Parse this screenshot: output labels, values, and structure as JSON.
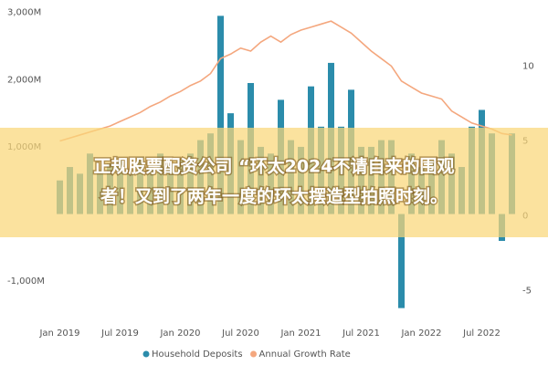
{
  "chart_data": {
    "type": "bar-line",
    "categories": [
      "Jan 2019",
      null,
      null,
      null,
      null,
      null,
      "Jul 2019",
      null,
      null,
      null,
      null,
      null,
      "Jan 2020",
      null,
      null,
      null,
      null,
      null,
      "Jul 2020",
      null,
      null,
      null,
      null,
      null,
      "Jan 2021",
      null,
      null,
      null,
      null,
      null,
      "Jul 2021",
      null,
      null,
      null,
      null,
      null,
      "Jan 2022",
      null,
      null,
      null,
      null,
      null,
      "Jul 2022",
      null,
      null,
      null
    ],
    "series": [
      {
        "name": "Household Deposits",
        "color": "#2b8cab",
        "type": "bar",
        "values": [
          500,
          700,
          600,
          900,
          650,
          750,
          800,
          600,
          850,
          700,
          900,
          750,
          800,
          900,
          1100,
          1200,
          2950,
          1500,
          1100,
          1950,
          1000,
          900,
          1700,
          1100,
          1000,
          1900,
          1300,
          2250,
          1300,
          1850,
          1000,
          1000,
          1100,
          1100,
          -1400,
          900,
          700,
          800,
          1100,
          900,
          700,
          1300,
          1550,
          1200,
          -400,
          1200
        ]
      },
      {
        "name": "Annual Growth Rate",
        "color": "#f4a77e",
        "type": "line",
        "axis": "y2",
        "values": [
          5,
          5.2,
          5.4,
          5.6,
          5.8,
          6.0,
          6.3,
          6.6,
          6.9,
          7.3,
          7.6,
          8.0,
          8.3,
          8.7,
          9.0,
          9.5,
          10.5,
          10.8,
          11.2,
          11.0,
          11.6,
          12.0,
          11.6,
          12.1,
          12.4,
          12.6,
          12.8,
          13.0,
          12.6,
          12.2,
          11.6,
          11.0,
          10.5,
          10.0,
          9.0,
          8.6,
          8.2,
          8.0,
          7.8,
          7.0,
          6.6,
          6.2,
          6.0,
          5.8,
          5.5,
          5.4
        ]
      }
    ],
    "ylim": [
      -1500,
      3050
    ],
    "yticks": [
      {
        "value": -1000,
        "label": "-1,000M"
      },
      {
        "value": 1000,
        "label": "1,000M"
      },
      {
        "value": 2000,
        "label": "2,000M"
      },
      {
        "value": 3000,
        "label": "3,000M"
      }
    ],
    "y2lim": [
      -6.6,
      13.8
    ],
    "y2ticks": [
      -5,
      0,
      5,
      10
    ],
    "legend": "bottom"
  },
  "banner": {
    "lines": [
      "正规股票配资公司 “环太2024不请自来的围观",
      "者！又到了两年一度的环太摆造型拍照时刻。"
    ]
  }
}
